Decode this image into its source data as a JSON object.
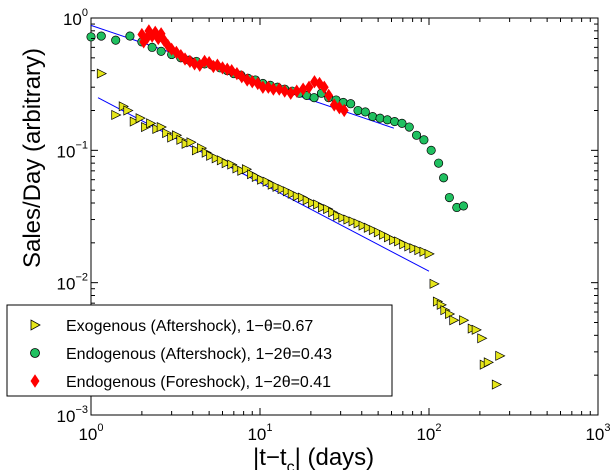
{
  "chart_data": {
    "type": "scatter",
    "title": "",
    "xlabel_main": "|t−t",
    "xlabel_sub": "c",
    "xlabel_tail": "| (days)",
    "ylabel": "Sales/Day (arbitrary)",
    "xscale": "log",
    "yscale": "log",
    "xlim": [
      1,
      1000
    ],
    "ylim": [
      0.001,
      1
    ],
    "grid": false,
    "legend_position": "bottom-left",
    "x_ticks": [
      {
        "base": "10",
        "exp": "0",
        "value": 1
      },
      {
        "base": "10",
        "exp": "1",
        "value": 10
      },
      {
        "base": "10",
        "exp": "2",
        "value": 100
      },
      {
        "base": "10",
        "exp": "3",
        "value": 1000
      }
    ],
    "y_ticks": [
      {
        "base": "10",
        "exp": "−3",
        "value": 0.001
      },
      {
        "base": "10",
        "exp": "−2",
        "value": 0.01
      },
      {
        "base": "10",
        "exp": "−1",
        "value": 0.1
      },
      {
        "base": "10",
        "exp": "0",
        "value": 1
      }
    ],
    "series": [
      {
        "name": "Exogenous (Aftershock), 1−θ=0.67",
        "marker": "triangle-right",
        "color": "#e6e61a",
        "edge": "#000000",
        "points": [
          [
            1.15,
            0.38
          ],
          [
            1.4,
            0.185
          ],
          [
            1.55,
            0.215
          ],
          [
            1.65,
            0.2
          ],
          [
            1.8,
            0.165
          ],
          [
            1.95,
            0.175
          ],
          [
            2.1,
            0.15
          ],
          [
            2.25,
            0.16
          ],
          [
            2.45,
            0.145
          ],
          [
            2.6,
            0.15
          ],
          [
            2.8,
            0.135
          ],
          [
            3.0,
            0.125
          ],
          [
            3.2,
            0.13
          ],
          [
            3.4,
            0.12
          ],
          [
            3.65,
            0.112
          ],
          [
            3.9,
            0.115
          ],
          [
            4.2,
            0.1
          ],
          [
            4.5,
            0.104
          ],
          [
            4.8,
            0.096
          ],
          [
            5.1,
            0.091
          ],
          [
            5.5,
            0.087
          ],
          [
            5.9,
            0.084
          ],
          [
            6.3,
            0.08
          ],
          [
            6.8,
            0.078
          ],
          [
            7.3,
            0.073
          ],
          [
            7.8,
            0.07
          ],
          [
            8.3,
            0.072
          ],
          [
            8.9,
            0.066
          ],
          [
            9.5,
            0.063
          ],
          [
            10.2,
            0.06
          ],
          [
            11,
            0.058
          ],
          [
            11.8,
            0.055
          ],
          [
            12.6,
            0.053
          ],
          [
            13.5,
            0.051
          ],
          [
            14.5,
            0.049
          ],
          [
            15.5,
            0.047
          ],
          [
            16.6,
            0.045
          ],
          [
            17.8,
            0.044
          ],
          [
            19.0,
            0.042
          ],
          [
            20.4,
            0.04
          ],
          [
            21.9,
            0.039
          ],
          [
            23.4,
            0.037
          ],
          [
            25.1,
            0.036
          ],
          [
            26.9,
            0.034
          ],
          [
            28.8,
            0.032
          ],
          [
            30.9,
            0.031
          ],
          [
            33.1,
            0.03
          ],
          [
            35.5,
            0.029
          ],
          [
            38,
            0.028
          ],
          [
            40.7,
            0.027
          ],
          [
            43.7,
            0.026
          ],
          [
            46.8,
            0.025
          ],
          [
            50.1,
            0.024
          ],
          [
            53.7,
            0.023
          ],
          [
            57.5,
            0.022
          ],
          [
            61.7,
            0.021
          ],
          [
            66,
            0.0205
          ],
          [
            70.8,
            0.0195
          ],
          [
            75.9,
            0.0188
          ],
          [
            81.3,
            0.0182
          ],
          [
            87,
            0.0176
          ],
          [
            93.3,
            0.0171
          ],
          [
            100,
            0.0165
          ],
          [
            107,
            0.0098
          ],
          [
            112,
            0.0072
          ],
          [
            118,
            0.0068
          ],
          [
            124,
            0.0062
          ],
          [
            132,
            0.0058
          ],
          [
            140,
            0.0052
          ],
          [
            160,
            0.0052
          ],
          [
            180,
            0.0045
          ],
          [
            190,
            0.0044
          ],
          [
            205,
            0.0038
          ],
          [
            212,
            0.0024
          ],
          [
            224,
            0.0025
          ],
          [
            250,
            0.0017
          ],
          [
            262,
            0.0028
          ]
        ]
      },
      {
        "name": "Endogenous (Aftershock), 1−2θ=0.43",
        "marker": "circle",
        "color": "#20c060",
        "edge": "#000000",
        "points": [
          [
            1.0,
            0.72
          ],
          [
            1.15,
            0.73
          ],
          [
            1.4,
            0.68
          ],
          [
            1.7,
            0.73
          ],
          [
            2.0,
            0.66
          ],
          [
            2.3,
            0.6
          ],
          [
            2.6,
            0.56
          ],
          [
            3.0,
            0.53
          ],
          [
            3.4,
            0.5
          ],
          [
            3.8,
            0.48
          ],
          [
            4.2,
            0.47
          ],
          [
            4.7,
            0.45
          ],
          [
            5.2,
            0.44
          ],
          [
            5.8,
            0.42
          ],
          [
            6.4,
            0.4
          ],
          [
            7.0,
            0.38
          ],
          [
            7.7,
            0.37
          ],
          [
            8.5,
            0.35
          ],
          [
            9.4,
            0.34
          ],
          [
            10.4,
            0.32
          ],
          [
            11.5,
            0.31
          ],
          [
            12.7,
            0.3
          ],
          [
            14.0,
            0.29
          ],
          [
            15.5,
            0.28
          ],
          [
            17.1,
            0.27
          ],
          [
            18.9,
            0.26
          ],
          [
            20.9,
            0.25
          ],
          [
            23.1,
            0.27
          ],
          [
            25.5,
            0.25
          ],
          [
            28.2,
            0.24
          ],
          [
            31.1,
            0.23
          ],
          [
            34.4,
            0.225
          ],
          [
            38,
            0.2
          ],
          [
            42,
            0.195
          ],
          [
            46.4,
            0.18
          ],
          [
            51.3,
            0.175
          ],
          [
            56.7,
            0.17
          ],
          [
            62.6,
            0.165
          ],
          [
            69.2,
            0.16
          ],
          [
            76.4,
            0.15
          ],
          [
            84.4,
            0.13
          ],
          [
            93.3,
            0.12
          ],
          [
            103,
            0.1
          ],
          [
            114,
            0.08
          ],
          [
            122,
            0.062
          ],
          [
            132,
            0.044
          ],
          [
            146,
            0.037
          ],
          [
            160,
            0.038
          ]
        ]
      },
      {
        "name": "Endogenous (Foreshock), 1−2θ=0.41",
        "marker": "diamond",
        "color": "#ff0000",
        "edge": "#ff0000",
        "points": [
          [
            2.0,
            0.75
          ],
          [
            2.05,
            0.66
          ],
          [
            2.15,
            0.71
          ],
          [
            2.2,
            0.8
          ],
          [
            2.3,
            0.73
          ],
          [
            2.4,
            0.78
          ],
          [
            2.5,
            0.7
          ],
          [
            2.6,
            0.76
          ],
          [
            2.7,
            0.68
          ],
          [
            2.85,
            0.62
          ],
          [
            3.0,
            0.58
          ],
          [
            3.2,
            0.55
          ],
          [
            3.4,
            0.52
          ],
          [
            3.6,
            0.49
          ],
          [
            3.85,
            0.47
          ],
          [
            4.1,
            0.45
          ],
          [
            4.4,
            0.44
          ],
          [
            4.7,
            0.47
          ],
          [
            5.0,
            0.46
          ],
          [
            5.3,
            0.43
          ],
          [
            5.6,
            0.44
          ],
          [
            6.0,
            0.42
          ],
          [
            6.4,
            0.41
          ],
          [
            6.8,
            0.4
          ],
          [
            7.3,
            0.38
          ],
          [
            7.8,
            0.36
          ],
          [
            8.4,
            0.34
          ],
          [
            9.0,
            0.33
          ],
          [
            9.7,
            0.32
          ],
          [
            10.4,
            0.3
          ],
          [
            11.2,
            0.3
          ],
          [
            12.0,
            0.29
          ],
          [
            13.0,
            0.29
          ],
          [
            14.0,
            0.28
          ],
          [
            15.2,
            0.27
          ],
          [
            16.5,
            0.28
          ],
          [
            18.0,
            0.29
          ],
          [
            19.5,
            0.3
          ],
          [
            21.0,
            0.33
          ],
          [
            22.5,
            0.32
          ],
          [
            24.0,
            0.3
          ],
          [
            25.5,
            0.26
          ],
          [
            27.5,
            0.22
          ],
          [
            29.5,
            0.21
          ],
          [
            31.5,
            0.2
          ]
        ]
      }
    ],
    "fit_lines": [
      {
        "name": "fit-exogenous",
        "color": "#0000ff",
        "from": [
          1.1,
          0.25
        ],
        "to": [
          100,
          0.0122
        ]
      },
      {
        "name": "fit-endogenous",
        "color": "#0000ff",
        "from": [
          1.0,
          0.88
        ],
        "to": [
          62,
          0.147
        ]
      }
    ]
  }
}
